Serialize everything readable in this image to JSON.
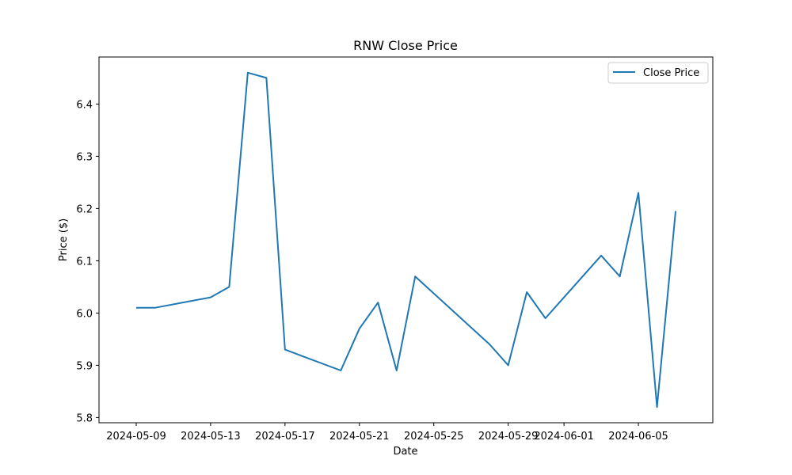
{
  "chart_data": {
    "type": "line",
    "title": "RNW Close Price",
    "xlabel": "Date",
    "ylabel": "Price ($)",
    "xlim": [
      "2024-05-07",
      "2024-06-09"
    ],
    "ylim": [
      5.79,
      6.49
    ],
    "x_ticks": [
      "2024-05-09",
      "2024-05-13",
      "2024-05-17",
      "2024-05-21",
      "2024-05-25",
      "2024-05-29",
      "2024-06-01",
      "2024-06-05"
    ],
    "y_ticks": [
      5.8,
      5.9,
      6.0,
      6.1,
      6.2,
      6.3,
      6.4
    ],
    "y_tick_labels": [
      "5.8",
      "5.9",
      "6.0",
      "6.1",
      "6.2",
      "6.3",
      "6.4"
    ],
    "grid": false,
    "legend_position": "top-right",
    "series": [
      {
        "name": "Close Price",
        "color": "#1f77b4",
        "points": [
          {
            "x": "2024-05-09",
            "y": 6.01
          },
          {
            "x": "2024-05-10",
            "y": 6.01
          },
          {
            "x": "2024-05-13",
            "y": 6.03
          },
          {
            "x": "2024-05-14",
            "y": 6.05
          },
          {
            "x": "2024-05-15",
            "y": 6.46
          },
          {
            "x": "2024-05-16",
            "y": 6.45
          },
          {
            "x": "2024-05-17",
            "y": 5.93
          },
          {
            "x": "2024-05-20",
            "y": 5.89
          },
          {
            "x": "2024-05-21",
            "y": 5.97
          },
          {
            "x": "2024-05-22",
            "y": 6.02
          },
          {
            "x": "2024-05-23",
            "y": 5.89
          },
          {
            "x": "2024-05-24",
            "y": 6.07
          },
          {
            "x": "2024-05-28",
            "y": 5.94
          },
          {
            "x": "2024-05-29",
            "y": 5.9
          },
          {
            "x": "2024-05-30",
            "y": 6.04
          },
          {
            "x": "2024-05-31",
            "y": 5.99
          },
          {
            "x": "2024-06-03",
            "y": 6.11
          },
          {
            "x": "2024-06-04",
            "y": 6.07
          },
          {
            "x": "2024-06-05",
            "y": 6.23
          },
          {
            "x": "2024-06-06",
            "y": 5.82
          },
          {
            "x": "2024-06-07",
            "y": 6.195
          }
        ]
      }
    ]
  }
}
